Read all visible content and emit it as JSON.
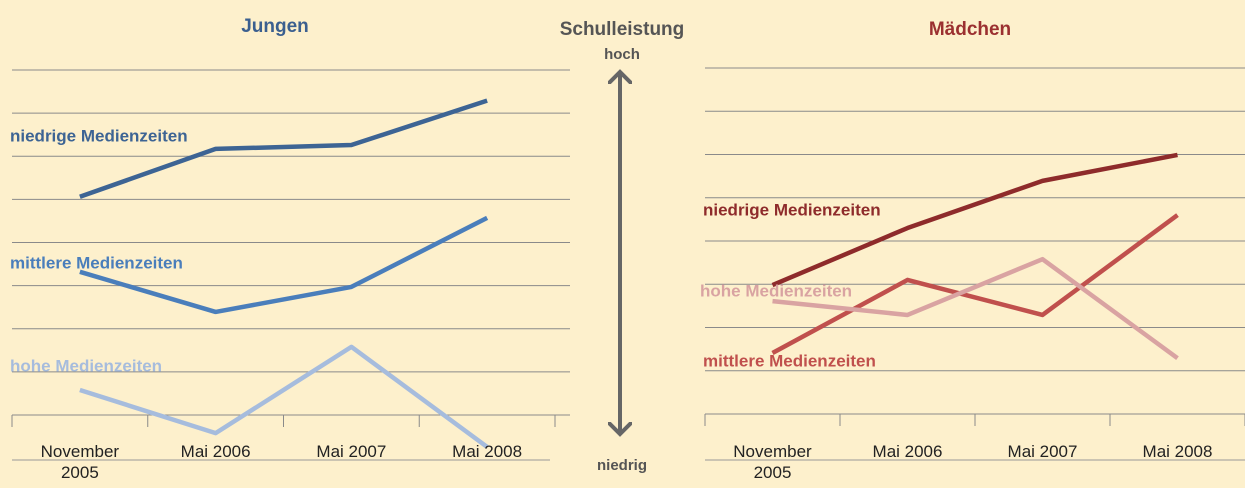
{
  "middle": {
    "title": "Schulleistung",
    "high": "hoch",
    "low": "niedrig"
  },
  "chart_data": [
    {
      "type": "line",
      "title": "Jungen",
      "title_color": "#3b5f8f",
      "categories": [
        "November 2005",
        "Mai 2006",
        "Mai 2007",
        "Mai 2008"
      ],
      "ylim": [
        0,
        8
      ],
      "yticks": [
        0,
        1,
        2,
        3,
        4,
        5,
        6,
        7,
        8
      ],
      "grid": true,
      "series": [
        {
          "name": "niedrige Medienzeiten",
          "color": "#3d6494",
          "values": [
            5.06,
            6.17,
            6.26,
            7.29
          ]
        },
        {
          "name": "mittlere Medienzeiten",
          "color": "#4a7ebb",
          "values": [
            3.32,
            2.39,
            2.97,
            4.57
          ]
        },
        {
          "name": "hohe Medienzeiten",
          "color": "#a6bcdd",
          "values": [
            0.58,
            -0.42,
            1.58,
            -0.74
          ]
        }
      ]
    },
    {
      "type": "line",
      "title": "Mädchen",
      "title_color": "#9b3030",
      "categories": [
        "November 2005",
        "Mai 2006",
        "Mai 2007",
        "Mai 2008"
      ],
      "ylim": [
        0,
        8
      ],
      "yticks": [
        0,
        1,
        2,
        3,
        4,
        5,
        6,
        7,
        8
      ],
      "grid": true,
      "series": [
        {
          "name": "niedrige Medienzeiten",
          "color": "#8e2b2b",
          "values": [
            2.98,
            4.3,
            5.39,
            5.99
          ]
        },
        {
          "name": "mittlere Medienzeiten",
          "color": "#c0504d",
          "values": [
            1.41,
            3.1,
            2.29,
            4.6
          ]
        },
        {
          "name": "hohe Medienzeiten",
          "color": "#d9a3a2",
          "values": [
            2.61,
            2.29,
            3.58,
            1.29
          ]
        }
      ]
    }
  ]
}
